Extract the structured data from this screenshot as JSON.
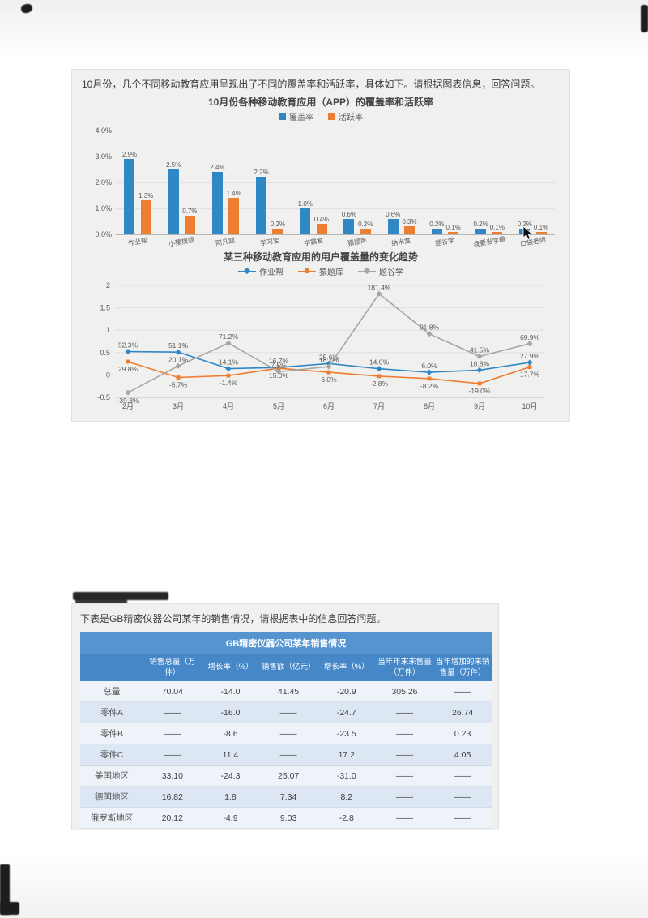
{
  "page": {
    "section1_instruction": "10月份，几个不同移动教育应用呈现出了不同的覆盖率和活跃率，具体如下。请根据图表信息，回答问题。",
    "section2_instruction": "下表是GB精密仪器公司某年的销售情况，请根据表中的信息回答问题。"
  },
  "colors": {
    "blue": "#2f87c6",
    "orange": "#ed7d31",
    "gray": "#a6a6a6",
    "table_title_bg": "#5694d0",
    "table_header_bg": "#4587c7"
  },
  "chart_data": [
    {
      "type": "bar",
      "title": "10月份各种移动教育应用（APP）的覆盖率和活跃率",
      "categories": [
        "作业帮",
        "小猿搜题",
        "阿凡题",
        "学习宝",
        "学霸君",
        "猿题库",
        "纳米盒",
        "题谷学",
        "我要当学霸",
        "口袋老师"
      ],
      "series": [
        {
          "name": "覆盖率",
          "color": "#2f87c6",
          "values": [
            2.9,
            2.5,
            2.4,
            2.2,
            1.0,
            0.6,
            0.6,
            0.2,
            0.2,
            0.2
          ]
        },
        {
          "name": "活跃率",
          "color": "#ed7d31",
          "values": [
            1.3,
            0.7,
            1.4,
            0.2,
            0.4,
            0.2,
            0.3,
            0.1,
            0.1,
            0.1
          ]
        }
      ],
      "ylim": [
        0,
        4
      ],
      "yticks": [
        "4.0%",
        "3.0%",
        "2.0%",
        "1.0%",
        "0.0%"
      ],
      "value_suffix": "%",
      "grid": true,
      "legend_position": "top"
    },
    {
      "type": "line",
      "title": "某三种移动教育应用的用户覆盖量的变化趋势",
      "x": [
        "2月",
        "3月",
        "4月",
        "5月",
        "6月",
        "7月",
        "8月",
        "9月",
        "10月"
      ],
      "series": [
        {
          "name": "作业帮",
          "color": "#2f87c6",
          "values_pct": [
            52.3,
            51.1,
            14.1,
            16.7,
            25.6,
            14.0,
            6.0,
            10.8,
            27.9
          ]
        },
        {
          "name": "猿题库",
          "color": "#ed7d31",
          "values_pct": [
            29.8,
            -5.7,
            -1.4,
            15.0,
            6.0,
            -2.8,
            -8.2,
            -19.0,
            17.7
          ]
        },
        {
          "name": "题谷学",
          "color": "#a6a6a6",
          "values_pct": [
            -39.3,
            20.1,
            71.2,
            7.5,
            18.7,
            181.4,
            91.8,
            41.5,
            69.9
          ]
        }
      ],
      "ylim": [
        -0.5,
        2
      ],
      "yticks": [
        2,
        1.5,
        1,
        0.5,
        0,
        -0.5
      ],
      "grid": true,
      "legend_position": "top"
    },
    {
      "type": "table",
      "title": "GB精密仪器公司某年销售情况",
      "columns": [
        "",
        "销售总量（万件）",
        "增长率（%）",
        "销售额（亿元）",
        "增长率（%）",
        "当年年末未售量（万件）",
        "当年增加的未销售量（万件）"
      ],
      "rows": [
        [
          "总量",
          "70.04",
          "-14.0",
          "41.45",
          "-20.9",
          "305.26",
          "——"
        ],
        [
          "零件A",
          "——",
          "-16.0",
          "——",
          "-24.7",
          "——",
          "26.74"
        ],
        [
          "零件B",
          "——",
          "-8.6",
          "——",
          "-23.5",
          "——",
          "0.23"
        ],
        [
          "零件C",
          "——",
          "11.4",
          "——",
          "17.2",
          "——",
          "4.05"
        ],
        [
          "美国地区",
          "33.10",
          "-24.3",
          "25.07",
          "-31.0",
          "——",
          "——"
        ],
        [
          "德国地区",
          "16.82",
          "1.8",
          "7.34",
          "8.2",
          "——",
          "——"
        ],
        [
          "俄罗斯地区",
          "20.12",
          "-4.9",
          "9.03",
          "-2.8",
          "——",
          "——"
        ]
      ]
    }
  ]
}
